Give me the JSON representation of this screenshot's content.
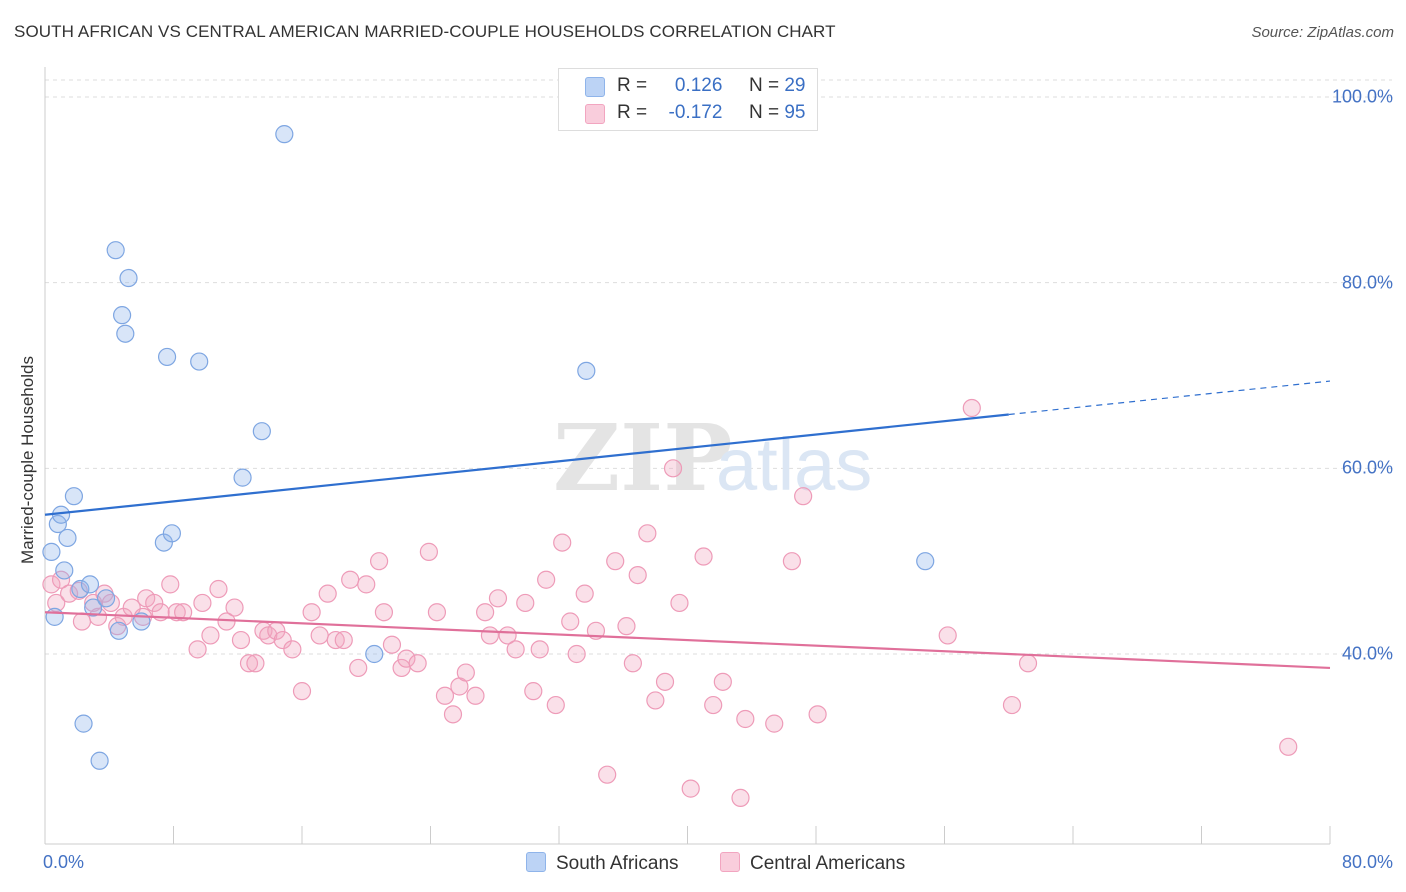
{
  "title": "SOUTH AFRICAN VS CENTRAL AMERICAN MARRIED-COUPLE HOUSEHOLDS CORRELATION CHART",
  "source": "Source: ZipAtlas.com",
  "watermark": {
    "part1": "ZIP",
    "part2": "atlas"
  },
  "legend": {
    "r_label": "R =",
    "n_label": "N =",
    "rows": [
      {
        "r": "0.126",
        "n": "29"
      },
      {
        "r": "-0.172",
        "n": "95"
      }
    ]
  },
  "chart_data": {
    "type": "scatter",
    "title": "SOUTH AFRICAN VS CENTRAL AMERICAN MARRIED-COUPLE HOUSEHOLDS CORRELATION CHART",
    "xlabel": "",
    "ylabel": "Married-couple Households",
    "xlim": [
      0,
      80
    ],
    "ylim": [
      21,
      102
    ],
    "x_tick_labels": [
      "0.0%",
      "80.0%"
    ],
    "y_ticks": [
      40,
      60,
      80,
      100
    ],
    "y_tick_labels": [
      "40.0%",
      "60.0%",
      "80.0%",
      "100.0%"
    ],
    "grid": "horizontal dashed",
    "legend_position": "top-center",
    "colors": {
      "south_africans": "#8fb4ea",
      "central_americans": "#f2a5c0",
      "south_africans_line": "#2f6fcf",
      "central_americans_line": "#e0709a"
    },
    "series": [
      {
        "name": "South Africans",
        "r": 0.126,
        "n": 29,
        "trend": {
          "x": [
            0,
            60
          ],
          "y": [
            55.0,
            65.8
          ],
          "dashed_to": [
            80,
            69.4
          ]
        },
        "points": [
          [
            0.4,
            51.0
          ],
          [
            0.6,
            44.0
          ],
          [
            0.8,
            54.0
          ],
          [
            1.0,
            55.0
          ],
          [
            1.2,
            49.0
          ],
          [
            1.4,
            52.5
          ],
          [
            1.8,
            57.0
          ],
          [
            2.2,
            47.0
          ],
          [
            2.4,
            32.5
          ],
          [
            2.8,
            47.5
          ],
          [
            3.0,
            45.0
          ],
          [
            3.4,
            28.5
          ],
          [
            3.8,
            46.0
          ],
          [
            4.4,
            83.5
          ],
          [
            4.6,
            42.5
          ],
          [
            4.8,
            76.5
          ],
          [
            5.0,
            74.5
          ],
          [
            5.2,
            80.5
          ],
          [
            6.0,
            43.5
          ],
          [
            7.4,
            52.0
          ],
          [
            7.6,
            72.0
          ],
          [
            7.9,
            53.0
          ],
          [
            9.6,
            71.5
          ],
          [
            12.3,
            59.0
          ],
          [
            13.5,
            64.0
          ],
          [
            14.9,
            96.0
          ],
          [
            20.5,
            40.0
          ],
          [
            33.7,
            70.5
          ],
          [
            54.8,
            50.0
          ]
        ]
      },
      {
        "name": "Central Americans",
        "r": -0.172,
        "n": 95,
        "trend": {
          "x": [
            0,
            80
          ],
          "y": [
            44.5,
            38.5
          ]
        },
        "points": [
          [
            0.4,
            47.5
          ],
          [
            0.7,
            45.5
          ],
          [
            1.0,
            48.0
          ],
          [
            1.5,
            46.5
          ],
          [
            2.1,
            46.8
          ],
          [
            2.3,
            43.5
          ],
          [
            3.0,
            45.5
          ],
          [
            3.3,
            44.0
          ],
          [
            3.7,
            46.5
          ],
          [
            4.1,
            45.5
          ],
          [
            4.5,
            43.0
          ],
          [
            4.9,
            44.0
          ],
          [
            5.4,
            45.0
          ],
          [
            6.1,
            44.0
          ],
          [
            6.3,
            46.0
          ],
          [
            6.8,
            45.5
          ],
          [
            7.2,
            44.5
          ],
          [
            7.8,
            47.5
          ],
          [
            8.2,
            44.5
          ],
          [
            8.6,
            44.5
          ],
          [
            9.5,
            40.5
          ],
          [
            9.8,
            45.5
          ],
          [
            10.3,
            42.0
          ],
          [
            10.8,
            47.0
          ],
          [
            11.3,
            43.5
          ],
          [
            11.8,
            45.0
          ],
          [
            12.2,
            41.5
          ],
          [
            12.7,
            39.0
          ],
          [
            13.1,
            39.0
          ],
          [
            13.6,
            42.5
          ],
          [
            13.9,
            42.0
          ],
          [
            14.4,
            42.5
          ],
          [
            14.8,
            41.5
          ],
          [
            15.4,
            40.5
          ],
          [
            16.0,
            36.0
          ],
          [
            16.6,
            44.5
          ],
          [
            17.1,
            42.0
          ],
          [
            17.6,
            46.5
          ],
          [
            18.1,
            41.5
          ],
          [
            18.6,
            41.5
          ],
          [
            19.0,
            48.0
          ],
          [
            19.5,
            38.5
          ],
          [
            20.0,
            47.5
          ],
          [
            20.8,
            50.0
          ],
          [
            21.1,
            44.5
          ],
          [
            21.6,
            41.0
          ],
          [
            22.2,
            38.5
          ],
          [
            22.5,
            39.5
          ],
          [
            23.2,
            39.0
          ],
          [
            23.9,
            51.0
          ],
          [
            24.4,
            44.5
          ],
          [
            24.9,
            35.5
          ],
          [
            25.4,
            33.5
          ],
          [
            25.8,
            36.5
          ],
          [
            26.2,
            38.0
          ],
          [
            26.8,
            35.5
          ],
          [
            27.4,
            44.5
          ],
          [
            27.7,
            42.0
          ],
          [
            28.2,
            46.0
          ],
          [
            28.8,
            42.0
          ],
          [
            29.3,
            40.5
          ],
          [
            29.9,
            45.5
          ],
          [
            30.4,
            36.0
          ],
          [
            30.8,
            40.5
          ],
          [
            31.2,
            48.0
          ],
          [
            31.8,
            34.5
          ],
          [
            32.2,
            52.0
          ],
          [
            32.7,
            43.5
          ],
          [
            33.1,
            40.0
          ],
          [
            33.6,
            46.5
          ],
          [
            34.3,
            42.5
          ],
          [
            35.0,
            27.0
          ],
          [
            35.5,
            50.0
          ],
          [
            36.2,
            43.0
          ],
          [
            36.6,
            39.0
          ],
          [
            36.9,
            48.5
          ],
          [
            37.5,
            53.0
          ],
          [
            38.0,
            35.0
          ],
          [
            38.6,
            37.0
          ],
          [
            39.1,
            60.0
          ],
          [
            39.5,
            45.5
          ],
          [
            40.2,
            25.5
          ],
          [
            41.0,
            50.5
          ],
          [
            41.6,
            34.5
          ],
          [
            42.2,
            37.0
          ],
          [
            43.3,
            24.5
          ],
          [
            43.6,
            33.0
          ],
          [
            45.4,
            32.5
          ],
          [
            46.5,
            50.0
          ],
          [
            47.2,
            57.0
          ],
          [
            48.1,
            33.5
          ],
          [
            56.2,
            42.0
          ],
          [
            57.7,
            66.5
          ],
          [
            60.2,
            34.5
          ],
          [
            61.2,
            39.0
          ],
          [
            77.4,
            30.0
          ]
        ]
      }
    ]
  }
}
